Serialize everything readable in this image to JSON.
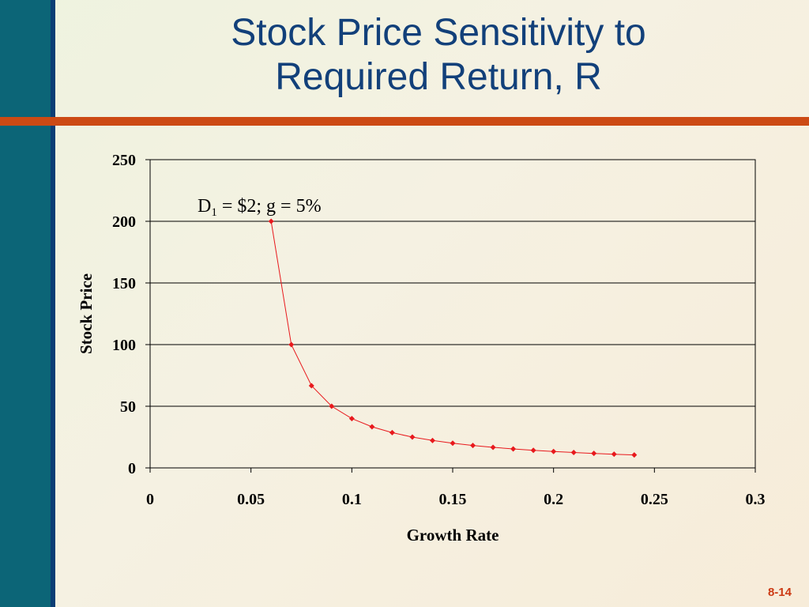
{
  "slide": {
    "title_line1": "Stock Price Sensitivity to",
    "title_line2": "Required Return, R",
    "page_number": "8-14"
  },
  "colors": {
    "series": "#e8191d",
    "title": "#12407a",
    "accent_rule": "#cc4a14",
    "left_bar": "#0c6577"
  },
  "chart_data": {
    "type": "scatter",
    "title": "",
    "xlabel": "Growth Rate",
    "ylabel": "Stock Price",
    "xlim": [
      0,
      0.3
    ],
    "ylim": [
      0,
      250
    ],
    "xticks": [
      "0",
      "0.05",
      "0.1",
      "0.15",
      "0.2",
      "0.25",
      "0.3"
    ],
    "yticks": [
      "0",
      "50",
      "100",
      "150",
      "200",
      "250"
    ],
    "grid": "horizontal",
    "annotation": {
      "main": "D",
      "subscript": "1",
      "rest": " = $2; g = 5%"
    },
    "series": [
      {
        "x": [
          0.06,
          0.07,
          0.08,
          0.09,
          0.1,
          0.11,
          0.12,
          0.13,
          0.14,
          0.15,
          0.16,
          0.17,
          0.18,
          0.19,
          0.2,
          0.21,
          0.22,
          0.23,
          0.24
        ],
        "y": [
          200,
          100,
          66.67,
          50,
          40,
          33.33,
          28.57,
          25,
          22.22,
          20,
          18.18,
          16.67,
          15.38,
          14.29,
          13.33,
          12.5,
          11.76,
          11.11,
          10.53
        ]
      }
    ]
  }
}
